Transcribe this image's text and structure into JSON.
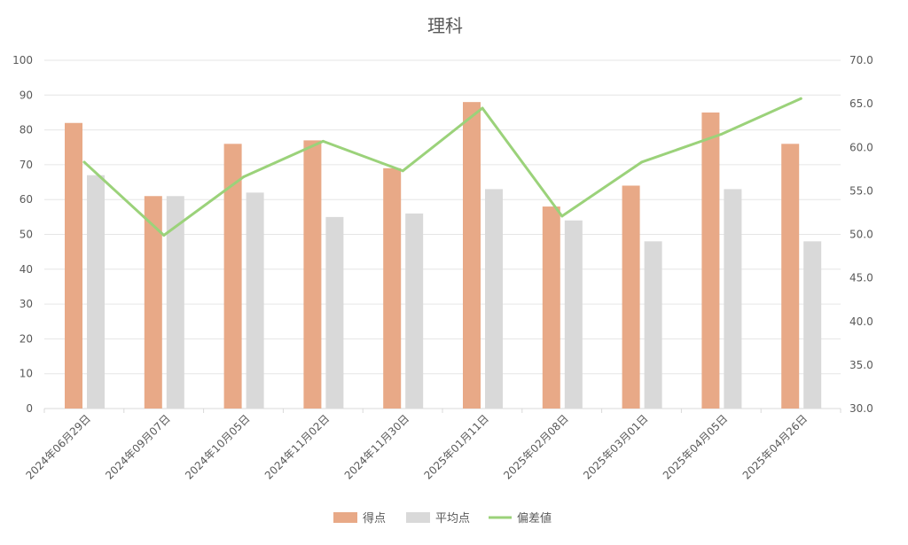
{
  "chart_data": {
    "type": "bar",
    "title": "理科",
    "categories": [
      "2024年06月29日",
      "2024年09月07日",
      "2024年10月05日",
      "2024年11月02日",
      "2024年11月30日",
      "2025年01月11日",
      "2025年02月08日",
      "2025年03月01日",
      "2025年04月05日",
      "2025年04月26日"
    ],
    "series": [
      {
        "name": "得点",
        "kind": "bar",
        "axis": "left",
        "color": "#E8A987",
        "values": [
          82,
          61,
          76,
          77,
          69,
          88,
          58,
          64,
          85,
          76
        ]
      },
      {
        "name": "平均点",
        "kind": "bar",
        "axis": "left",
        "color": "#D9D9D9",
        "values": [
          67,
          61,
          62,
          55,
          56,
          63,
          54,
          48,
          63,
          48
        ]
      },
      {
        "name": "偏差値",
        "kind": "line",
        "axis": "right",
        "color": "#9BD27A",
        "values": [
          58.3,
          49.9,
          56.6,
          60.7,
          57.3,
          64.5,
          52.1,
          58.3,
          61.5,
          65.6
        ]
      }
    ],
    "y_left": {
      "min": 0,
      "max": 100,
      "step": 10,
      "decimals": 0
    },
    "y_right": {
      "min": 30,
      "max": 70,
      "step": 5,
      "decimals": 1
    },
    "grid": true,
    "legend_position": "bottom"
  }
}
